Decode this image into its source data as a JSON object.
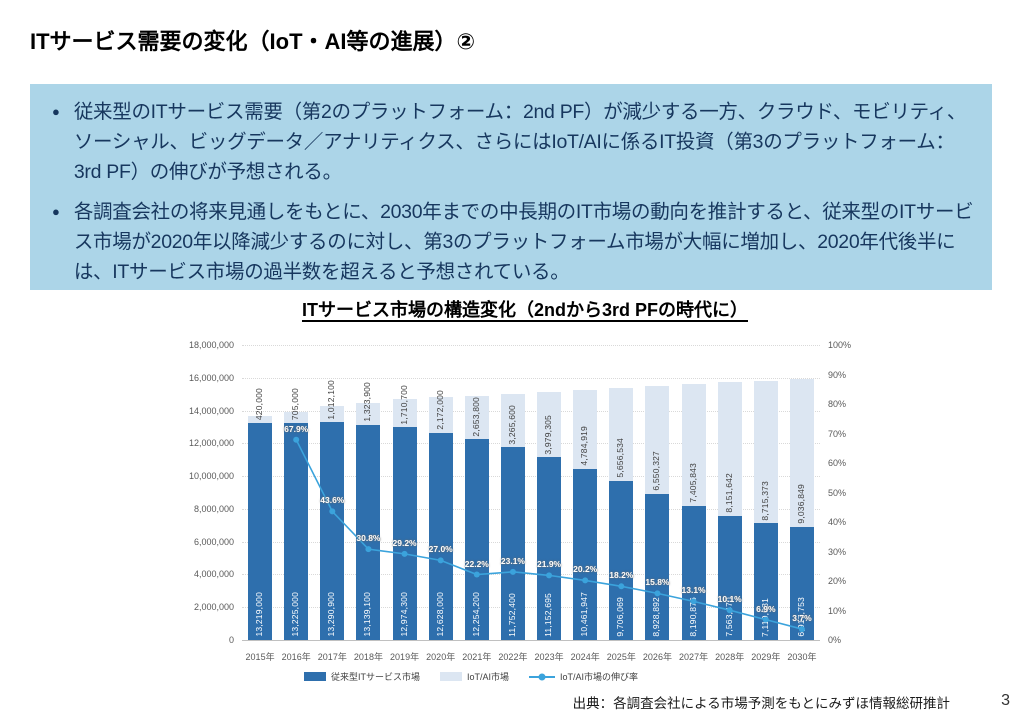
{
  "page": {
    "title": "ITサービス需要の変化（IoT・AI等の進展）②",
    "source": "出典：各調査会社による市場予測をもとにみずほ情報総研推計",
    "page_number": "3"
  },
  "summary_box": {
    "background_color": "#acd5e8",
    "text_color": "#17375e",
    "bullet_glyph": "●",
    "bullets": [
      "従来型のITサービス需要（第2のプラットフォーム：2nd PF）が減少する一方、クラウド、モビリティ、ソーシャル、ビッグデータ／アナリティクス、さらにはIoT/AIに係るIT投資（第3のプラットフォーム：3rd PF）の伸びが予想される。",
      "各調査会社の将来見通しをもとに、2030年までの中長期のIT市場の動向を推計すると、従来型のITサービス市場が2020年以降減少するのに対し、第3のプラットフォーム市場が大幅に増加し、2020年代後半には、ITサービス市場の過半数を超えると予想されている。"
    ]
  },
  "chart_data": {
    "type": "bar",
    "subtype": "stacked-bar-with-line",
    "title": "ITサービス市場の構造変化（2ndから3rd PFの時代に）",
    "categories": [
      "2015年",
      "2016年",
      "2017年",
      "2018年",
      "2019年",
      "2020年",
      "2021年",
      "2022年",
      "2023年",
      "2024年",
      "2025年",
      "2026年",
      "2027年",
      "2028年",
      "2029年",
      "2030年"
    ],
    "series": [
      {
        "name": "従来型ITサービス市場",
        "type": "bar",
        "color": "#2e6fad",
        "label_color": "#ffffff",
        "values": [
          13219000,
          13225000,
          13290900,
          13139100,
          12974300,
          12628000,
          12254200,
          11752400,
          11152695,
          10461947,
          9706069,
          8928892,
          8190876,
          7563470,
          7119031,
          6917753
        ]
      },
      {
        "name": "IoT/AI市場",
        "type": "bar",
        "color": "#dce6f2",
        "label_color": "#404040",
        "values": [
          420000,
          705000,
          1012100,
          1323900,
          1710700,
          2172000,
          2653800,
          3265600,
          3979305,
          4784919,
          5656534,
          6550327,
          7405843,
          8151642,
          8715373,
          9036849
        ]
      },
      {
        "name": "IoT/AI市場の伸び率",
        "type": "line",
        "color": "#3ba3dc",
        "values": [
          null,
          67.9,
          43.6,
          30.8,
          29.2,
          27.0,
          22.2,
          23.1,
          21.9,
          20.2,
          18.2,
          15.8,
          13.1,
          10.1,
          6.9,
          3.7
        ]
      }
    ],
    "left_axis": {
      "min": 0,
      "max": 18000000,
      "step": 2000000,
      "labels": [
        "0",
        "2,000,000",
        "4,000,000",
        "6,000,000",
        "8,000,000",
        "10,000,000",
        "12,000,000",
        "14,000,000",
        "16,000,000",
        "18,000,000"
      ]
    },
    "right_axis": {
      "min": 0,
      "max": 100,
      "step": 10,
      "labels": [
        "0%",
        "10%",
        "20%",
        "30%",
        "40%",
        "50%",
        "60%",
        "70%",
        "80%",
        "90%",
        "100%"
      ]
    },
    "grid": true,
    "legend_position": "bottom"
  }
}
